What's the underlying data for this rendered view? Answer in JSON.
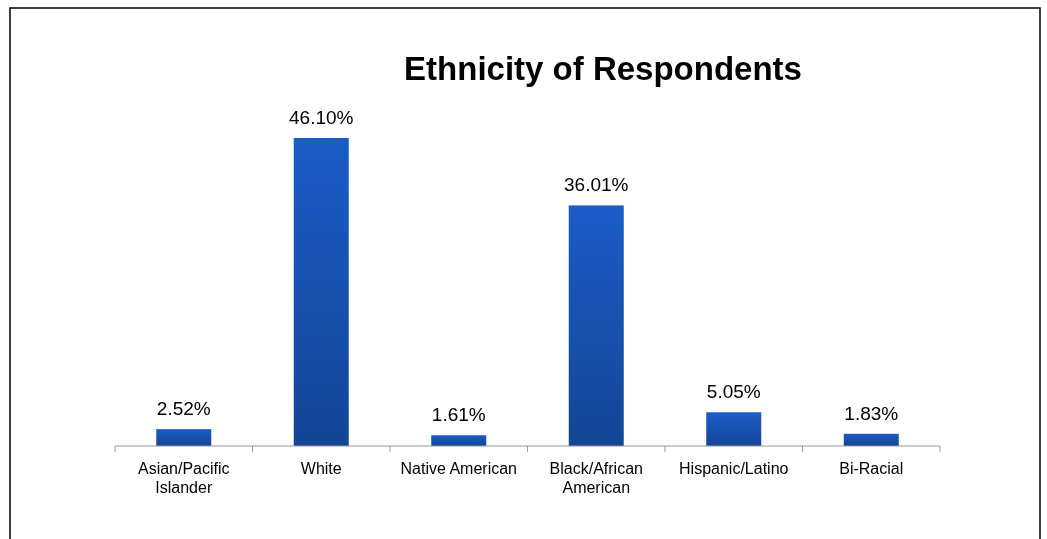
{
  "chart_data": {
    "type": "bar",
    "title": "Ethnicity of Respondents",
    "categories": [
      "Asian/Pacific Islander",
      "White",
      "Native American",
      "Black/African American",
      "Hispanic/Latino",
      "Bi-Racial"
    ],
    "values": [
      2.52,
      46.1,
      1.61,
      36.01,
      5.05,
      1.83
    ],
    "value_labels": [
      "2.52%",
      "46.10%",
      "1.61%",
      "36.01%",
      "5.05%",
      "1.83%"
    ],
    "color": "#1a5cc8"
  }
}
